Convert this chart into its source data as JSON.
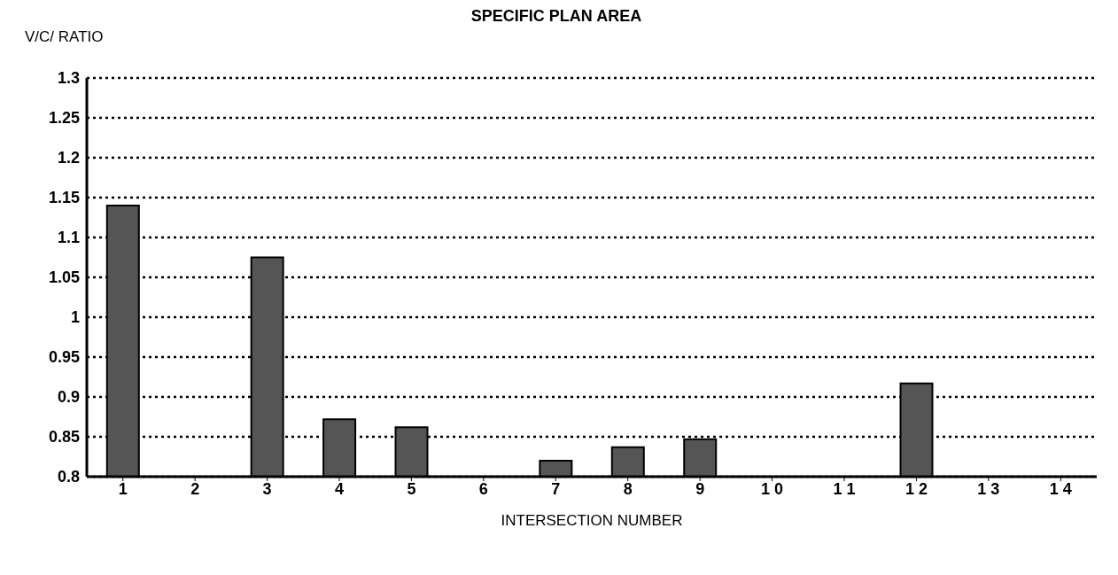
{
  "chart_data": {
    "type": "bar",
    "title": "SPECIFIC PLAN AREA",
    "ylabel": "V/C/ RATIO",
    "xlabel": "INTERSECTION NUMBER",
    "categories": [
      "1",
      "2",
      "3",
      "4",
      "5",
      "6",
      "7",
      "8",
      "9",
      "1 0",
      "1 1",
      "1 2",
      "1 3",
      "1 4"
    ],
    "values": [
      1.14,
      null,
      1.075,
      0.872,
      0.862,
      null,
      0.82,
      0.837,
      0.847,
      null,
      null,
      0.917,
      null,
      null
    ],
    "color": "#555555",
    "ylim": [
      0.8,
      1.3
    ],
    "yticks": [
      0.8,
      0.85,
      0.9,
      0.95,
      1,
      1.05,
      1.1,
      1.15,
      1.2,
      1.25,
      1.3
    ],
    "grid": "y"
  }
}
